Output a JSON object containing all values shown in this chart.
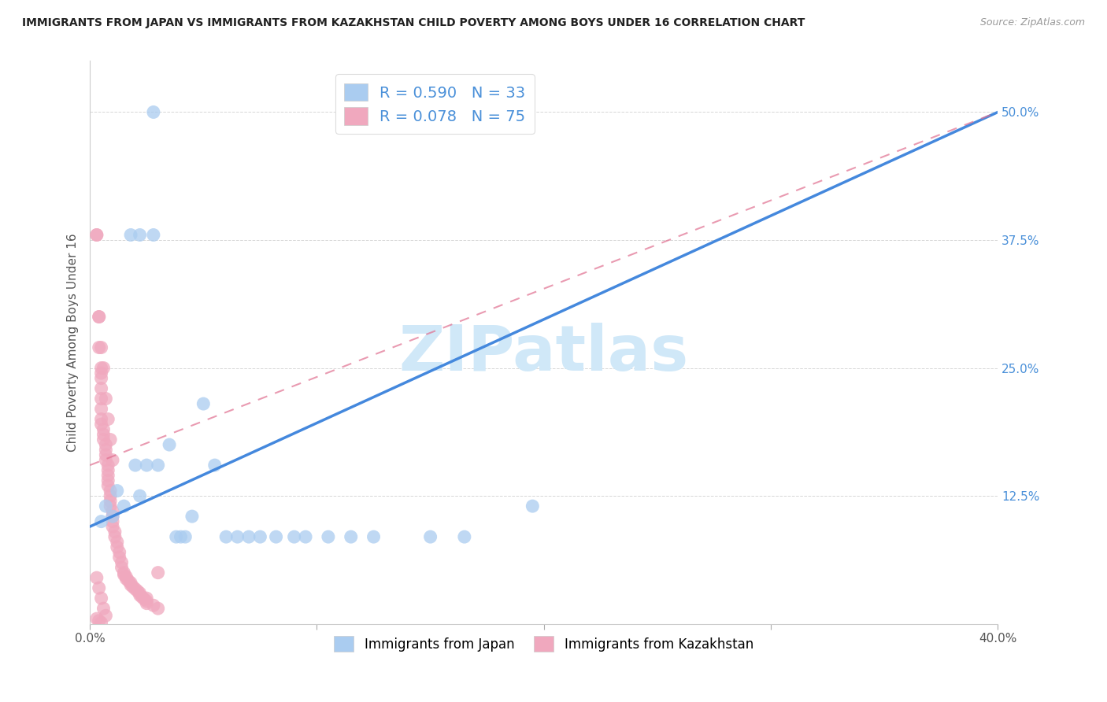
{
  "title": "IMMIGRANTS FROM JAPAN VS IMMIGRANTS FROM KAZAKHSTAN CHILD POVERTY AMONG BOYS UNDER 16 CORRELATION CHART",
  "source": "Source: ZipAtlas.com",
  "ylabel": "Child Poverty Among Boys Under 16",
  "xlim": [
    0.0,
    0.4
  ],
  "ylim": [
    0.0,
    0.55
  ],
  "xticks": [
    0.0,
    0.1,
    0.2,
    0.3,
    0.4
  ],
  "yticks": [
    0.0,
    0.125,
    0.25,
    0.375,
    0.5
  ],
  "ytick_labels": [
    "",
    "12.5%",
    "25.0%",
    "37.5%",
    "50.0%"
  ],
  "japan_R": 0.59,
  "japan_N": 33,
  "kaz_R": 0.078,
  "kaz_N": 75,
  "japan_color": "#aaccf0",
  "japan_line_color": "#4488dd",
  "kaz_color": "#f0a8be",
  "kaz_line_color": "#e07090",
  "kaz_line_style": "dashed",
  "watermark_text": "ZIPatlas",
  "watermark_color": "#d0e8f8",
  "legend_text_color": "#4a90d9",
  "japan_x": [
    0.005,
    0.007,
    0.01,
    0.012,
    0.015,
    0.018,
    0.02,
    0.022,
    0.025,
    0.028,
    0.03,
    0.035,
    0.038,
    0.04,
    0.042,
    0.045,
    0.05,
    0.055,
    0.06,
    0.065,
    0.07,
    0.075,
    0.082,
    0.09,
    0.095,
    0.105,
    0.115,
    0.125,
    0.15,
    0.165,
    0.028,
    0.022,
    0.195
  ],
  "japan_y": [
    0.1,
    0.115,
    0.105,
    0.13,
    0.115,
    0.38,
    0.155,
    0.125,
    0.155,
    0.38,
    0.155,
    0.175,
    0.085,
    0.085,
    0.085,
    0.105,
    0.215,
    0.155,
    0.085,
    0.085,
    0.085,
    0.085,
    0.085,
    0.085,
    0.085,
    0.085,
    0.085,
    0.085,
    0.085,
    0.085,
    0.5,
    0.38,
    0.115
  ],
  "kaz_x": [
    0.003,
    0.004,
    0.004,
    0.005,
    0.005,
    0.005,
    0.005,
    0.005,
    0.005,
    0.005,
    0.005,
    0.006,
    0.006,
    0.006,
    0.007,
    0.007,
    0.007,
    0.007,
    0.008,
    0.008,
    0.008,
    0.008,
    0.008,
    0.009,
    0.009,
    0.009,
    0.009,
    0.01,
    0.01,
    0.01,
    0.01,
    0.011,
    0.011,
    0.012,
    0.012,
    0.013,
    0.013,
    0.014,
    0.014,
    0.015,
    0.015,
    0.016,
    0.016,
    0.017,
    0.018,
    0.018,
    0.019,
    0.02,
    0.021,
    0.022,
    0.022,
    0.023,
    0.024,
    0.025,
    0.025,
    0.028,
    0.03,
    0.003,
    0.004,
    0.005,
    0.006,
    0.007,
    0.008,
    0.009,
    0.01,
    0.003,
    0.004,
    0.005,
    0.006,
    0.007,
    0.003,
    0.004,
    0.005,
    0.03,
    0.025
  ],
  "kaz_y": [
    0.38,
    0.3,
    0.27,
    0.25,
    0.245,
    0.24,
    0.23,
    0.22,
    0.21,
    0.2,
    0.195,
    0.19,
    0.185,
    0.18,
    0.175,
    0.17,
    0.165,
    0.16,
    0.155,
    0.15,
    0.145,
    0.14,
    0.135,
    0.13,
    0.125,
    0.12,
    0.115,
    0.11,
    0.105,
    0.1,
    0.095,
    0.09,
    0.085,
    0.08,
    0.075,
    0.07,
    0.065,
    0.06,
    0.055,
    0.05,
    0.048,
    0.046,
    0.044,
    0.042,
    0.04,
    0.038,
    0.036,
    0.034,
    0.032,
    0.03,
    0.028,
    0.026,
    0.024,
    0.022,
    0.02,
    0.018,
    0.015,
    0.38,
    0.3,
    0.27,
    0.25,
    0.22,
    0.2,
    0.18,
    0.16,
    0.045,
    0.035,
    0.025,
    0.015,
    0.008,
    0.005,
    0.003,
    0.001,
    0.05,
    0.025
  ],
  "japan_line_x0": 0.0,
  "japan_line_y0": 0.095,
  "japan_line_x1": 0.4,
  "japan_line_y1": 0.5,
  "kaz_line_x0": 0.0,
  "kaz_line_y0": 0.155,
  "kaz_line_x1": 0.4,
  "kaz_line_y1": 0.5
}
